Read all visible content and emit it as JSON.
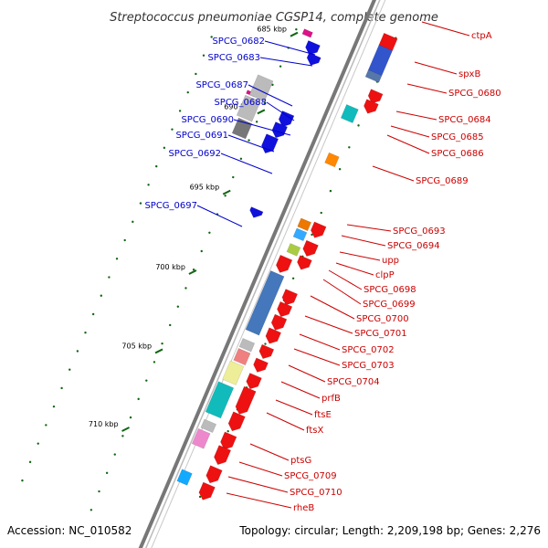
{
  "title": "Streptococcus pneumoniae CGSP14, complete genome",
  "footer": {
    "accession": "Accession: NC_010582",
    "topology": "Topology: circular; Length: 2,209,198 bp; Genes: 2,276"
  },
  "scale_ticks": [
    "685 kbp",
    "690 kbp",
    "695 kbp",
    "700 kbp",
    "705 kbp",
    "710 kbp"
  ],
  "colors": {
    "forward_label": "#0000cc",
    "reverse_label": "#cc0000",
    "backbone": "#777777",
    "tick": "#116611"
  },
  "left_labels": [
    "SPCG_0682",
    "SPCG_0683",
    "SPCG_0687",
    "SPCG_0688",
    "SPCG_0690",
    "SPCG_0691",
    "SPCG_0692",
    "SPCG_0697"
  ],
  "right_labels": [
    "ctpA",
    "spxB",
    "SPCG_0680",
    "SPCG_0684",
    "SPCG_0685",
    "SPCG_0686",
    "SPCG_0689",
    "SPCG_0693",
    "SPCG_0694",
    "upp",
    "clpP",
    "SPCG_0698",
    "SPCG_0699",
    "SPCG_0700",
    "SPCG_0701",
    "SPCG_0702",
    "SPCG_0703",
    "SPCG_0704",
    "prfB",
    "ftsE",
    "ftsX",
    "ptsG",
    "SPCG_0709",
    "SPCG_0710",
    "rheB"
  ]
}
